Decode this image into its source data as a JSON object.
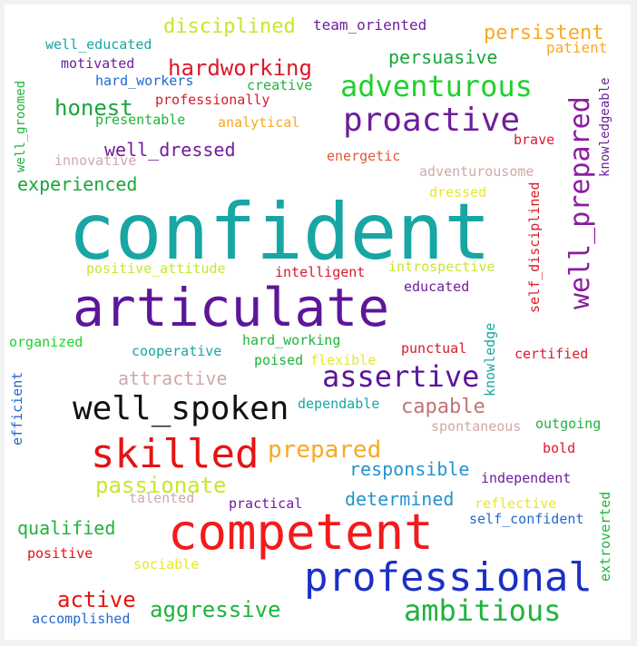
{
  "words": [
    {
      "text": "confident",
      "color": "#17a6a3"
    },
    {
      "text": "articulate",
      "color": "#5d169a"
    },
    {
      "text": "competent",
      "color": "#f21b1b"
    },
    {
      "text": "professional",
      "color": "#1b30c8"
    },
    {
      "text": "skilled",
      "color": "#e61313"
    },
    {
      "text": "well_spoken",
      "color": "#111111"
    },
    {
      "text": "proactive",
      "color": "#6f1d9c"
    },
    {
      "text": "adventurous",
      "color": "#1fd12c"
    },
    {
      "text": "assertive",
      "color": "#5a169a"
    },
    {
      "text": "ambitious",
      "color": "#1fb33c"
    },
    {
      "text": "hardworking",
      "color": "#d91a2a"
    },
    {
      "text": "well_prepared",
      "color": "#8d1ca1"
    },
    {
      "text": "prepared",
      "color": "#f8a925"
    },
    {
      "text": "passionate",
      "color": "#c8e62c"
    },
    {
      "text": "aggressive",
      "color": "#1fb33c"
    },
    {
      "text": "honest",
      "color": "#18a63c"
    },
    {
      "text": "capable",
      "color": "#c27373"
    },
    {
      "text": "active",
      "color": "#e61313"
    },
    {
      "text": "qualified",
      "color": "#1fb33c"
    },
    {
      "text": "responsible",
      "color": "#2493cf"
    },
    {
      "text": "determined",
      "color": "#2493cf"
    },
    {
      "text": "attractive",
      "color": "#d1a8a8"
    },
    {
      "text": "well_dressed",
      "color": "#6f1d9c"
    },
    {
      "text": "experienced",
      "color": "#18a63c"
    },
    {
      "text": "disciplined",
      "color": "#c8e62c"
    },
    {
      "text": "persuasive",
      "color": "#18a63c"
    },
    {
      "text": "persistent",
      "color": "#f8a925"
    },
    {
      "text": "team_oriented",
      "color": "#6f1d9c"
    },
    {
      "text": "well_educated",
      "color": "#17a6a3"
    },
    {
      "text": "patient",
      "color": "#f8a925"
    },
    {
      "text": "motivated",
      "color": "#6f1d9c"
    },
    {
      "text": "hard_workers",
      "color": "#2468cf"
    },
    {
      "text": "creative",
      "color": "#1fb33c"
    },
    {
      "text": "professionally",
      "color": "#d91a2a"
    },
    {
      "text": "presentable",
      "color": "#1fb33c"
    },
    {
      "text": "analytical",
      "color": "#f8a925"
    },
    {
      "text": "brave",
      "color": "#d91a2a"
    },
    {
      "text": "innovative",
      "color": "#d1a8a8"
    },
    {
      "text": "energetic",
      "color": "#e0573a"
    },
    {
      "text": "adventurousome",
      "color": "#d1a8a8"
    },
    {
      "text": "dressed",
      "color": "#e6e82c"
    },
    {
      "text": "positive_attitude",
      "color": "#c8e62c"
    },
    {
      "text": "intelligent",
      "color": "#d91a2a"
    },
    {
      "text": "introspective",
      "color": "#c8e62c"
    },
    {
      "text": "educated",
      "color": "#6f1d9c"
    },
    {
      "text": "organized",
      "color": "#1fd12c"
    },
    {
      "text": "cooperative",
      "color": "#17a6a3"
    },
    {
      "text": "hard_working",
      "color": "#1fb33c"
    },
    {
      "text": "punctual",
      "color": "#d91a2a"
    },
    {
      "text": "certified",
      "color": "#d91a2a"
    },
    {
      "text": "poised",
      "color": "#1fb33c"
    },
    {
      "text": "flexible",
      "color": "#e6e82c"
    },
    {
      "text": "dependable",
      "color": "#17a6a3"
    },
    {
      "text": "spontaneous",
      "color": "#d1a8a8"
    },
    {
      "text": "outgoing",
      "color": "#1fb33c"
    },
    {
      "text": "bold",
      "color": "#d91a2a"
    },
    {
      "text": "independent",
      "color": "#6f1d9c"
    },
    {
      "text": "talented",
      "color": "#d1a8a8"
    },
    {
      "text": "practical",
      "color": "#6f1d9c"
    },
    {
      "text": "reflective",
      "color": "#e6e82c"
    },
    {
      "text": "self_confident",
      "color": "#2468cf"
    },
    {
      "text": "positive",
      "color": "#e61313"
    },
    {
      "text": "sociable",
      "color": "#e6e82c"
    },
    {
      "text": "accomplished",
      "color": "#2468cf"
    },
    {
      "text": "well_groomed",
      "color": "#1fb33c"
    },
    {
      "text": "knowledgeable",
      "color": "#6f1d9c"
    },
    {
      "text": "self_disciplined",
      "color": "#d91a2a"
    },
    {
      "text": "knowledge",
      "color": "#17a6a3"
    },
    {
      "text": "efficient",
      "color": "#2468cf"
    },
    {
      "text": "extroverted",
      "color": "#1fb33c"
    }
  ]
}
